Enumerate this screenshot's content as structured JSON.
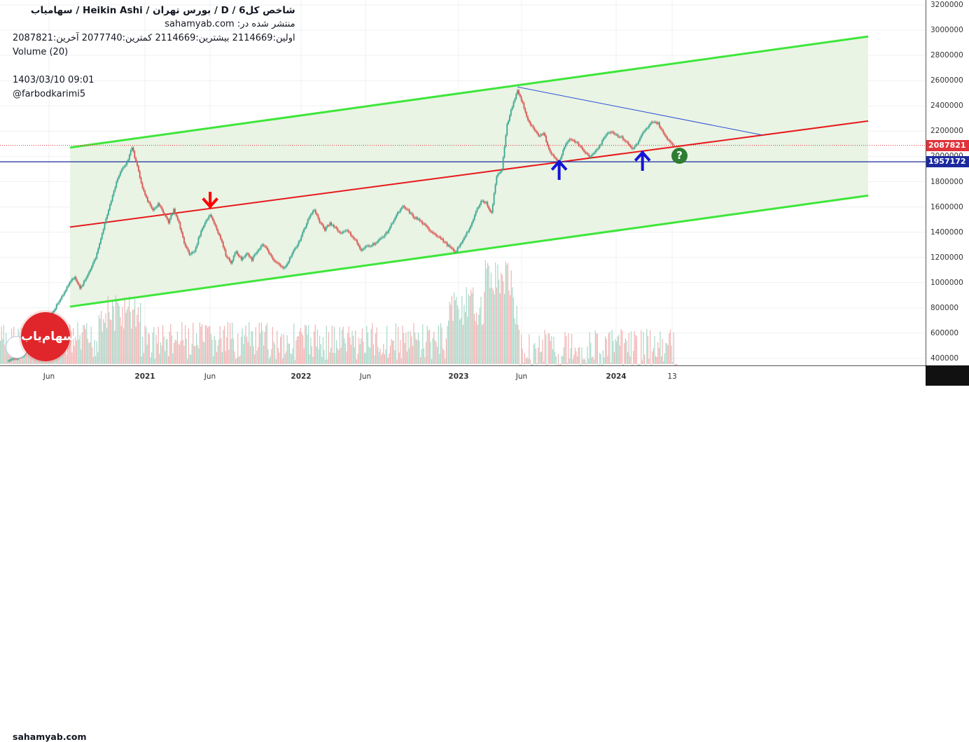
{
  "legend": {
    "title": "شاخص کل6  /  D  /  بورس تهران  /  Heikin Ashi  /  سهامیاب",
    "published": "منتشر شده در: sahamyab.com",
    "ohlc": "اولین:2114669  بیشترین:2114669  کمترین:2077740  آخرین:2087821",
    "volume": "Volume (20)",
    "datetime": "1403/03/10 09:01",
    "author": "@farbodkarimi5"
  },
  "watermark": "sahamyab.com",
  "logo_text": "سهام‌یاب",
  "help_badge": "?",
  "price_axis": {
    "ticks": [
      "3200000",
      "3000000",
      "2800000",
      "2600000",
      "2400000",
      "2200000",
      "2000000",
      "1800000",
      "1600000",
      "1400000",
      "1200000",
      "1000000",
      "800000",
      "600000",
      "400000"
    ],
    "last_price_tag": "2087821",
    "horizontal_line_tag": "1957172"
  },
  "time_axis": {
    "ticks": [
      {
        "label": "Jun",
        "year": false
      },
      {
        "label": "2021",
        "year": true
      },
      {
        "label": "Jun",
        "year": false
      },
      {
        "label": "2022",
        "year": true
      },
      {
        "label": "Jun",
        "year": false
      },
      {
        "label": "2023",
        "year": true
      },
      {
        "label": "Jun",
        "year": false
      },
      {
        "label": "2024",
        "year": true
      },
      {
        "label": "13",
        "year": false
      }
    ]
  },
  "colors": {
    "channel": "#3ee63a",
    "channel_fill": "#e9f4e4",
    "midline": "#e8191d",
    "trendline": "#2b4fd6",
    "hline": "#1c2a9e",
    "candle_up": "#3aa58f",
    "candle_down": "#d9534f",
    "volume_up": "#a8d8c8",
    "volume_down": "#f2b3b3",
    "arrow_down": "#ff0000",
    "arrow_up": "#1414d8",
    "last_price": "#e0323a",
    "hline_tag": "#1c2a9e"
  },
  "chart_data": {
    "type": "candlestick",
    "ylim": [
      350000,
      3220000
    ],
    "price_path": [
      [
        0,
        380000
      ],
      [
        3,
        420000
      ],
      [
        6,
        560000
      ],
      [
        9,
        780000
      ],
      [
        12,
        1000000
      ],
      [
        13,
        1050000
      ],
      [
        14,
        950000
      ],
      [
        15,
        1020000
      ],
      [
        17,
        1200000
      ],
      [
        19,
        1500000
      ],
      [
        21,
        1800000
      ],
      [
        22,
        1900000
      ],
      [
        23,
        1950000
      ],
      [
        24,
        2070000
      ],
      [
        25,
        1920000
      ],
      [
        26,
        1750000
      ],
      [
        27,
        1650000
      ],
      [
        28,
        1580000
      ],
      [
        29,
        1620000
      ],
      [
        30,
        1560000
      ],
      [
        31,
        1480000
      ],
      [
        32,
        1580000
      ],
      [
        33,
        1470000
      ],
      [
        34,
        1320000
      ],
      [
        35,
        1220000
      ],
      [
        36,
        1250000
      ],
      [
        37,
        1380000
      ],
      [
        38,
        1480000
      ],
      [
        39,
        1540000
      ],
      [
        40,
        1450000
      ],
      [
        41,
        1350000
      ],
      [
        42,
        1220000
      ],
      [
        43,
        1160000
      ],
      [
        44,
        1250000
      ],
      [
        45,
        1180000
      ],
      [
        46,
        1230000
      ],
      [
        47,
        1180000
      ],
      [
        48,
        1250000
      ],
      [
        49,
        1300000
      ],
      [
        50,
        1260000
      ],
      [
        51,
        1180000
      ],
      [
        52,
        1150000
      ],
      [
        53,
        1110000
      ],
      [
        54,
        1170000
      ],
      [
        55,
        1250000
      ],
      [
        56,
        1320000
      ],
      [
        57,
        1420000
      ],
      [
        58,
        1520000
      ],
      [
        59,
        1580000
      ],
      [
        60,
        1480000
      ],
      [
        61,
        1420000
      ],
      [
        62,
        1470000
      ],
      [
        63,
        1440000
      ],
      [
        64,
        1390000
      ],
      [
        65,
        1420000
      ],
      [
        66,
        1380000
      ],
      [
        67,
        1330000
      ],
      [
        68,
        1250000
      ],
      [
        69,
        1290000
      ],
      [
        70,
        1300000
      ],
      [
        71,
        1320000
      ],
      [
        72,
        1360000
      ],
      [
        73,
        1400000
      ],
      [
        74,
        1480000
      ],
      [
        75,
        1550000
      ],
      [
        76,
        1600000
      ],
      [
        77,
        1570000
      ],
      [
        78,
        1520000
      ],
      [
        79,
        1500000
      ],
      [
        80,
        1460000
      ],
      [
        81,
        1420000
      ],
      [
        82,
        1390000
      ],
      [
        83,
        1360000
      ],
      [
        84,
        1320000
      ],
      [
        85,
        1280000
      ],
      [
        86,
        1240000
      ],
      [
        87,
        1300000
      ],
      [
        88,
        1380000
      ],
      [
        89,
        1440000
      ],
      [
        90,
        1560000
      ],
      [
        91,
        1650000
      ],
      [
        92,
        1630000
      ],
      [
        93,
        1550000
      ],
      [
        94,
        1850000
      ],
      [
        95,
        1900000
      ],
      [
        96,
        2250000
      ],
      [
        97,
        2400000
      ],
      [
        98,
        2520000
      ],
      [
        99,
        2420000
      ],
      [
        100,
        2280000
      ],
      [
        101,
        2220000
      ],
      [
        102,
        2160000
      ],
      [
        103,
        2190000
      ],
      [
        104,
        2060000
      ],
      [
        105,
        1990000
      ],
      [
        106,
        1960000
      ],
      [
        107,
        2080000
      ],
      [
        108,
        2140000
      ],
      [
        109,
        2120000
      ],
      [
        110,
        2080000
      ],
      [
        111,
        2030000
      ],
      [
        112,
        1990000
      ],
      [
        113,
        2050000
      ],
      [
        114,
        2100000
      ],
      [
        115,
        2180000
      ],
      [
        116,
        2200000
      ],
      [
        117,
        2170000
      ],
      [
        118,
        2150000
      ],
      [
        119,
        2110000
      ],
      [
        120,
        2060000
      ],
      [
        121,
        2100000
      ],
      [
        122,
        2180000
      ],
      [
        123,
        2230000
      ],
      [
        124,
        2280000
      ],
      [
        125,
        2260000
      ],
      [
        126,
        2180000
      ],
      [
        127,
        2130000
      ],
      [
        128,
        2087821
      ]
    ],
    "channel_upper": [
      [
        0,
        2070000
      ],
      [
        160,
        2950000
      ]
    ],
    "channel_lower": [
      [
        0,
        810000
      ],
      [
        160,
        1690000
      ]
    ],
    "midline": [
      [
        0,
        1440000
      ],
      [
        160,
        2280000
      ]
    ],
    "trendline": [
      [
        98,
        2550000
      ],
      [
        140,
        2170000
      ]
    ],
    "hline": 1957172,
    "last_price": 2087821,
    "annotations": [
      {
        "type": "arrow_down",
        "x": 39,
        "y": 1540000
      },
      {
        "type": "arrow_up",
        "x": 106,
        "y": 1960000
      },
      {
        "type": "arrow_up",
        "x": 122,
        "y": 2020000
      },
      {
        "type": "question",
        "x": 128,
        "y": 1990000
      }
    ]
  }
}
